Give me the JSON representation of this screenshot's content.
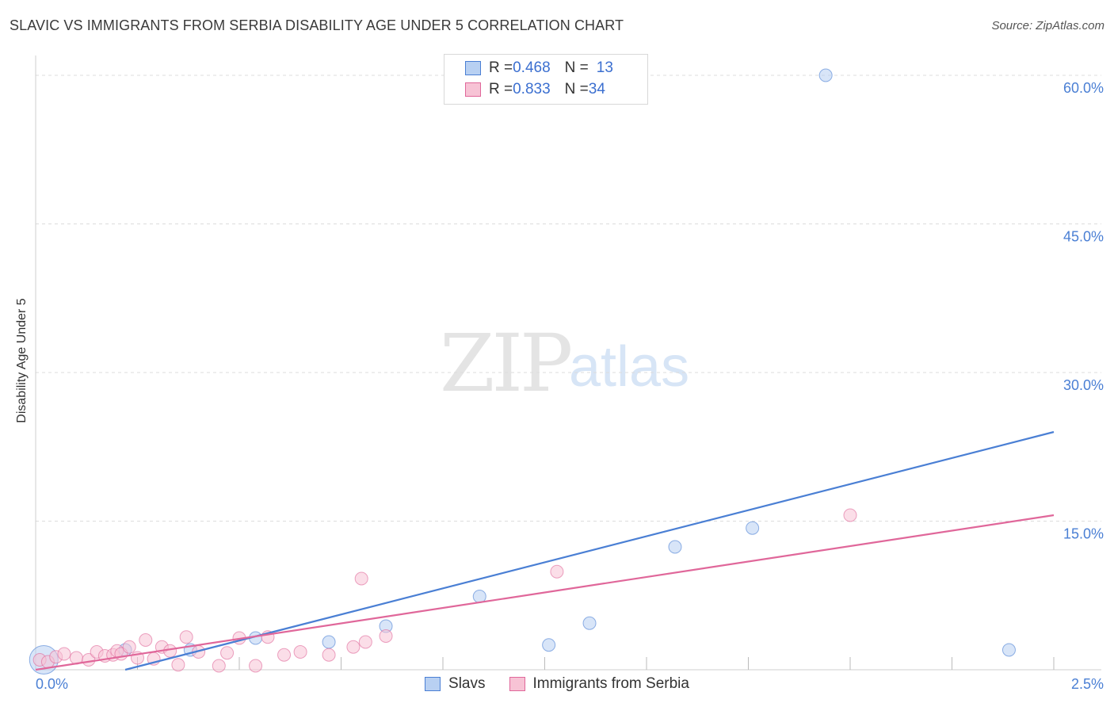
{
  "chart_data": {
    "type": "scatter",
    "title": "SLAVIC VS IMMIGRANTS FROM SERBIA DISABILITY AGE UNDER 5 CORRELATION CHART",
    "source": "Source: ZipAtlas.com",
    "ylabel": "Disability Age Under 5",
    "xlabel": "",
    "xlim": [
      0,
      2.5
    ],
    "ylim": [
      0,
      62
    ],
    "x_tick_labels": [
      "0.0%",
      "2.5%"
    ],
    "y_ticks": [
      15,
      30,
      45,
      60
    ],
    "y_tick_labels": [
      "15.0%",
      "30.0%",
      "45.0%",
      "60.0%"
    ],
    "watermark": {
      "zip": "ZIP",
      "atlas": "atlas"
    },
    "legend": {
      "rows": [
        {
          "r_label": "R = ",
          "r_value": "0.468",
          "n_label": "N = ",
          "n_value": "13"
        },
        {
          "r_label": "R = ",
          "r_value": "0.833",
          "n_label": "N = ",
          "n_value": "34"
        }
      ]
    },
    "series": [
      {
        "name": "Slavs",
        "color": "#4a7fd4",
        "fill": "#b8d0f2",
        "trend": {
          "x0": 0.22,
          "y0": 0,
          "x1": 2.5,
          "y1": 24
        },
        "points": [
          [
            0.02,
            1.0,
            "large"
          ],
          [
            0.22,
            2.0
          ],
          [
            0.38,
            2.0
          ],
          [
            0.54,
            3.2
          ],
          [
            0.72,
            2.8
          ],
          [
            0.86,
            4.4
          ],
          [
            1.09,
            7.4
          ],
          [
            1.26,
            2.5
          ],
          [
            1.36,
            4.7
          ],
          [
            1.57,
            12.4
          ],
          [
            1.76,
            14.3
          ],
          [
            1.94,
            60.0
          ],
          [
            2.39,
            2.0
          ]
        ]
      },
      {
        "name": "Immigrants from Serbia",
        "color": "#e0679a",
        "fill": "#f7c3d5",
        "trend": {
          "x0": 0.0,
          "y0": 0,
          "x1": 2.5,
          "y1": 15.6
        },
        "points": [
          [
            0.01,
            1.0
          ],
          [
            0.03,
            0.8
          ],
          [
            0.05,
            1.3
          ],
          [
            0.07,
            1.6
          ],
          [
            0.1,
            1.2
          ],
          [
            0.13,
            1.0
          ],
          [
            0.15,
            1.8
          ],
          [
            0.17,
            1.4
          ],
          [
            0.19,
            1.5
          ],
          [
            0.2,
            1.9
          ],
          [
            0.21,
            1.6
          ],
          [
            0.23,
            2.3
          ],
          [
            0.25,
            1.2
          ],
          [
            0.27,
            3.0
          ],
          [
            0.29,
            1.1
          ],
          [
            0.31,
            2.3
          ],
          [
            0.33,
            1.9
          ],
          [
            0.35,
            0.5
          ],
          [
            0.37,
            3.3
          ],
          [
            0.4,
            1.8
          ],
          [
            0.45,
            0.4
          ],
          [
            0.47,
            1.7
          ],
          [
            0.5,
            3.2
          ],
          [
            0.54,
            0.4
          ],
          [
            0.57,
            3.3
          ],
          [
            0.61,
            1.5
          ],
          [
            0.65,
            1.8
          ],
          [
            0.72,
            1.5
          ],
          [
            0.78,
            2.3
          ],
          [
            0.81,
            2.8
          ],
          [
            0.86,
            3.4
          ],
          [
            0.8,
            9.2
          ],
          [
            1.28,
            9.9
          ],
          [
            2.0,
            15.6
          ]
        ]
      }
    ]
  }
}
